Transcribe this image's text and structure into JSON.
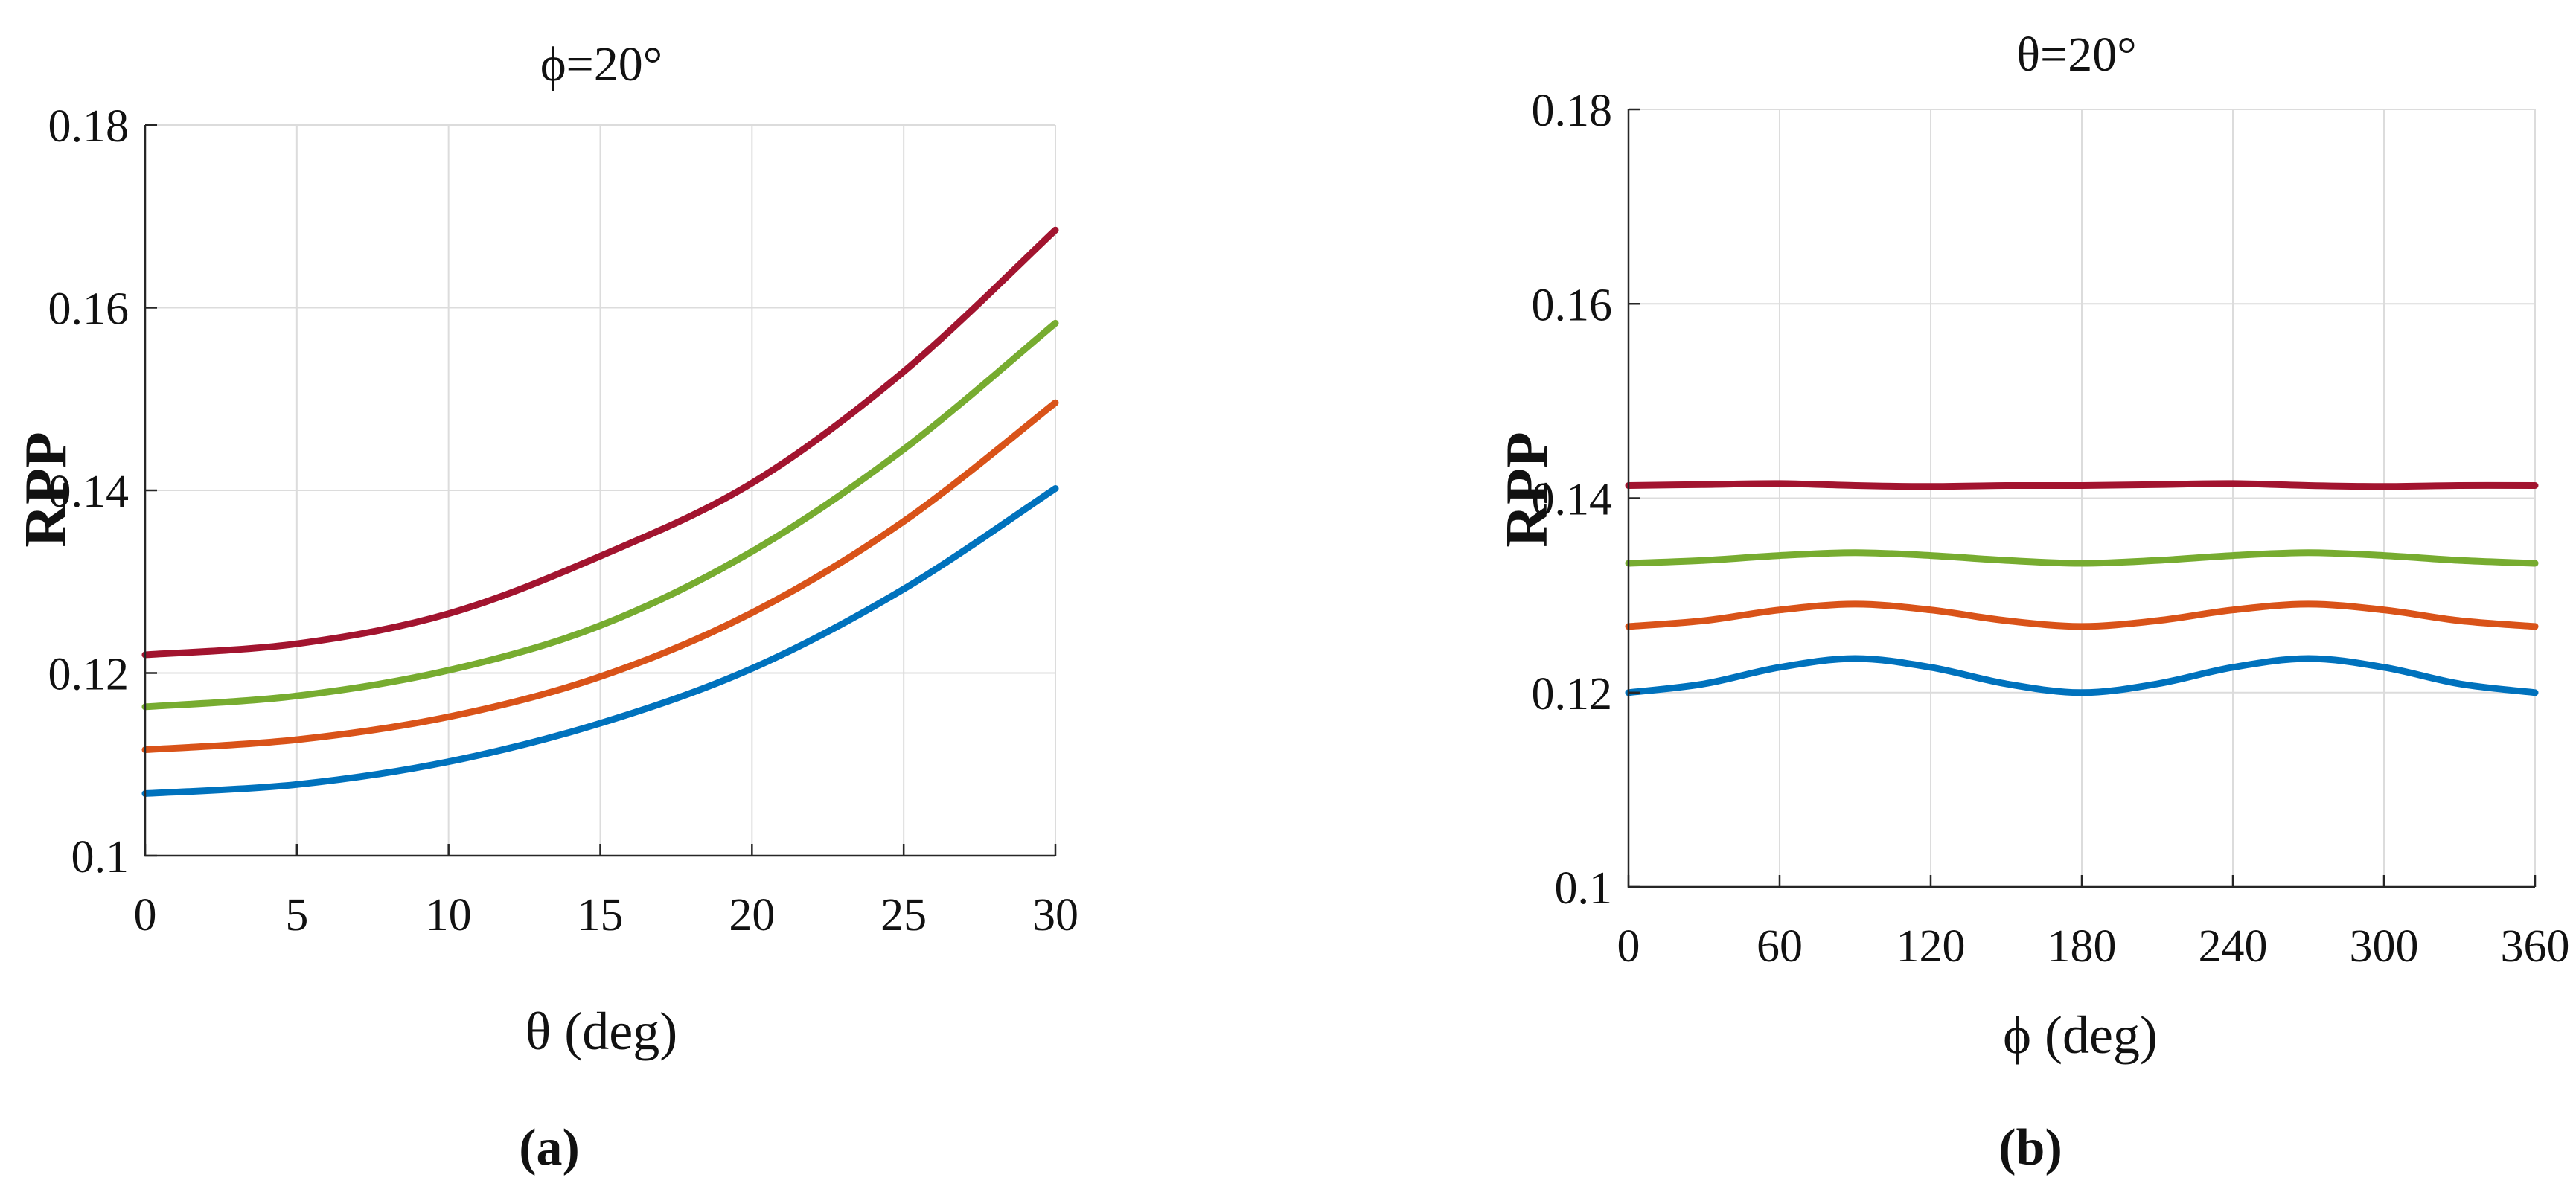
{
  "chart_data": [
    {
      "type": "line",
      "panel_label": "(a)",
      "title": "ϕ=20°",
      "xlabel": "θ (deg)",
      "ylabel": "RPP",
      "xlim": [
        0,
        30
      ],
      "ylim": [
        0.1,
        0.18
      ],
      "xticks": [
        "0",
        "5",
        "10",
        "15",
        "20",
        "25",
        "30"
      ],
      "yticks": [
        "0.1",
        "0.12",
        "0.14",
        "0.16",
        "0.18"
      ],
      "grid": true,
      "x": [
        0,
        5,
        10,
        15,
        20,
        25,
        30
      ],
      "series": [
        {
          "color": "#0072BD",
          "values": [
            0.1068,
            0.1078,
            0.1103,
            0.1145,
            0.1205,
            0.1292,
            0.1402
          ]
        },
        {
          "color": "#D95319",
          "values": [
            0.1116,
            0.1127,
            0.1152,
            0.1196,
            0.1266,
            0.1366,
            0.1496
          ]
        },
        {
          "color": "#77AC30",
          "values": [
            0.1163,
            0.1175,
            0.1203,
            0.1252,
            0.1333,
            0.1445,
            0.1583
          ]
        },
        {
          "color": "#A2142F",
          "values": [
            0.122,
            0.1232,
            0.1265,
            0.1328,
            0.1408,
            0.153,
            0.1685
          ]
        }
      ]
    },
    {
      "type": "line",
      "panel_label": "(b)",
      "title": "θ=20°",
      "xlabel": "ϕ (deg)",
      "ylabel": "RPP",
      "xlim": [
        0,
        360
      ],
      "ylim": [
        0.1,
        0.18
      ],
      "xticks": [
        "0",
        "60",
        "120",
        "180",
        "240",
        "300",
        "360"
      ],
      "yticks": [
        "0.1",
        "0.12",
        "0.14",
        "0.16",
        "0.18"
      ],
      "grid": true,
      "x": [
        0,
        30,
        60,
        90,
        120,
        150,
        180,
        210,
        240,
        270,
        300,
        330,
        360
      ],
      "series": [
        {
          "color": "#0072BD",
          "values": [
            0.12,
            0.1209,
            0.1226,
            0.1235,
            0.1226,
            0.1209,
            0.12,
            0.1209,
            0.1226,
            0.1235,
            0.1226,
            0.1209,
            0.12
          ]
        },
        {
          "color": "#D95319",
          "values": [
            0.1268,
            0.1274,
            0.1285,
            0.1291,
            0.1285,
            0.1274,
            0.1268,
            0.1274,
            0.1285,
            0.1291,
            0.1285,
            0.1274,
            0.1268
          ]
        },
        {
          "color": "#77AC30",
          "values": [
            0.1333,
            0.1336,
            0.1341,
            0.1344,
            0.1341,
            0.1336,
            0.1333,
            0.1336,
            0.1341,
            0.1344,
            0.1341,
            0.1336,
            0.1333
          ]
        },
        {
          "color": "#A2142F",
          "values": [
            0.1413,
            0.1414,
            0.1415,
            0.1413,
            0.1412,
            0.1413,
            0.1413,
            0.1414,
            0.1415,
            0.1413,
            0.1412,
            0.1413,
            0.1413
          ]
        }
      ]
    }
  ]
}
